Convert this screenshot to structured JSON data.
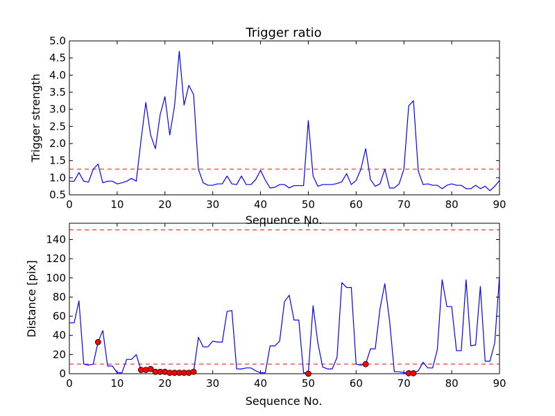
{
  "chart_data": [
    {
      "type": "line",
      "title": "Trigger ratio",
      "xlabel": "Sequence No.",
      "ylabel": "Trigger strength",
      "xlim": [
        0,
        90
      ],
      "ylim": [
        0.5,
        5.0
      ],
      "xticks": [
        "0",
        "10",
        "20",
        "30",
        "40",
        "50",
        "60",
        "70",
        "80",
        "90"
      ],
      "yticks": [
        "0.5",
        "1.0",
        "1.5",
        "2.0",
        "2.5",
        "3.0",
        "3.5",
        "4.0",
        "4.5",
        "5.0"
      ],
      "series": [
        {
          "color": "#0000ff",
          "x": [
            0,
            1,
            2,
            3,
            4,
            5,
            6,
            7,
            8,
            9,
            10,
            11,
            12,
            13,
            14,
            15,
            16,
            17,
            18,
            19,
            20,
            21,
            22,
            23,
            24,
            25,
            26,
            27,
            28,
            29,
            30,
            31,
            32,
            33,
            34,
            35,
            36,
            37,
            38,
            39,
            40,
            41,
            42,
            43,
            44,
            45,
            46,
            47,
            48,
            49,
            50,
            51,
            52,
            53,
            54,
            55,
            56,
            57,
            58,
            59,
            60,
            61,
            62,
            63,
            64,
            65,
            66,
            67,
            68,
            69,
            70,
            71,
            72,
            73,
            74,
            75,
            76,
            77,
            78,
            79,
            80,
            81,
            82,
            83,
            84,
            85,
            86,
            87,
            88,
            89,
            90
          ],
          "values": [
            0.9,
            0.9,
            1.15,
            0.9,
            0.87,
            1.25,
            1.4,
            0.85,
            0.9,
            0.9,
            0.82,
            0.85,
            0.9,
            0.98,
            0.9,
            2.1,
            3.2,
            2.25,
            1.85,
            2.85,
            3.37,
            2.25,
            3.1,
            4.7,
            3.12,
            3.7,
            3.43,
            1.25,
            0.85,
            0.78,
            0.78,
            0.82,
            0.82,
            1.05,
            0.82,
            0.8,
            1.05,
            0.8,
            0.8,
            0.95,
            1.22,
            0.93,
            0.7,
            0.72,
            0.8,
            0.8,
            0.7,
            0.77,
            0.77,
            0.77,
            2.67,
            1.05,
            0.75,
            0.8,
            0.8,
            0.8,
            0.83,
            0.88,
            1.12,
            0.8,
            0.92,
            1.25,
            1.85,
            0.95,
            0.75,
            0.82,
            1.25,
            0.7,
            0.7,
            0.82,
            1.25,
            3.1,
            3.25,
            1.2,
            0.8,
            0.82,
            0.78,
            0.78,
            0.68,
            0.78,
            0.82,
            0.78,
            0.78,
            0.68,
            0.68,
            0.78,
            0.68,
            0.75,
            0.62,
            0.75,
            0.92
          ]
        }
      ],
      "hlines": [
        {
          "y": 1.25,
          "color": "#ff0000",
          "style": "dashed"
        }
      ],
      "grid": false
    },
    {
      "type": "line",
      "title": "",
      "xlabel": "Sequence No.",
      "ylabel": "Distance [pix]",
      "xlim": [
        0,
        90
      ],
      "ylim": [
        0,
        157
      ],
      "xticks": [
        "0",
        "10",
        "20",
        "30",
        "40",
        "50",
        "60",
        "70",
        "80",
        "90"
      ],
      "yticks": [
        "0",
        "20",
        "40",
        "60",
        "80",
        "100",
        "120",
        "140"
      ],
      "series": [
        {
          "color": "#0000ff",
          "x": [
            0,
            1,
            2,
            3,
            4,
            5,
            6,
            7,
            8,
            9,
            10,
            11,
            12,
            13,
            14,
            15,
            16,
            17,
            18,
            19,
            20,
            21,
            22,
            23,
            24,
            25,
            26,
            27,
            28,
            29,
            30,
            31,
            32,
            33,
            34,
            35,
            36,
            37,
            38,
            39,
            40,
            41,
            42,
            43,
            44,
            45,
            46,
            47,
            48,
            49,
            50,
            51,
            52,
            53,
            54,
            55,
            56,
            57,
            58,
            59,
            60,
            61,
            62,
            63,
            64,
            65,
            66,
            67,
            68,
            69,
            70,
            71,
            72,
            73,
            74,
            75,
            76,
            77,
            78,
            79,
            80,
            81,
            82,
            83,
            84,
            85,
            86,
            87,
            88,
            89,
            90
          ],
          "values": [
            53,
            53,
            76,
            10,
            9,
            10,
            33,
            45,
            8,
            8,
            1,
            1,
            15,
            15,
            20,
            4,
            4,
            5,
            2,
            2,
            2,
            1,
            1,
            1,
            1,
            1,
            2,
            38,
            28,
            28,
            34,
            33,
            33,
            65,
            66,
            5,
            5,
            6,
            6,
            3,
            1,
            1,
            29,
            29,
            34,
            75,
            82,
            56,
            56,
            1,
            1,
            71,
            32,
            7,
            5,
            5,
            17,
            95,
            90,
            90,
            10,
            9,
            10,
            26,
            26,
            68,
            94,
            55,
            2,
            2,
            1,
            1,
            1,
            3,
            12,
            6,
            6,
            25,
            98,
            70,
            70,
            24,
            24,
            98,
            29,
            30,
            91,
            13,
            13,
            32,
            102
          ]
        }
      ],
      "markers": {
        "color": "#ff0000",
        "x": [
          6,
          15,
          16,
          17,
          18,
          19,
          20,
          21,
          22,
          23,
          24,
          25,
          26,
          50,
          62,
          71,
          72
        ],
        "values": [
          33,
          4,
          4,
          5,
          2,
          2,
          2,
          1,
          1,
          1,
          1,
          1,
          2,
          0,
          10,
          0.5,
          0.5
        ]
      },
      "hlines": [
        {
          "y": 150,
          "color": "#ff0000",
          "style": "dashed"
        },
        {
          "y": 10,
          "color": "#ff0000",
          "style": "dashed"
        }
      ],
      "grid": false
    }
  ]
}
